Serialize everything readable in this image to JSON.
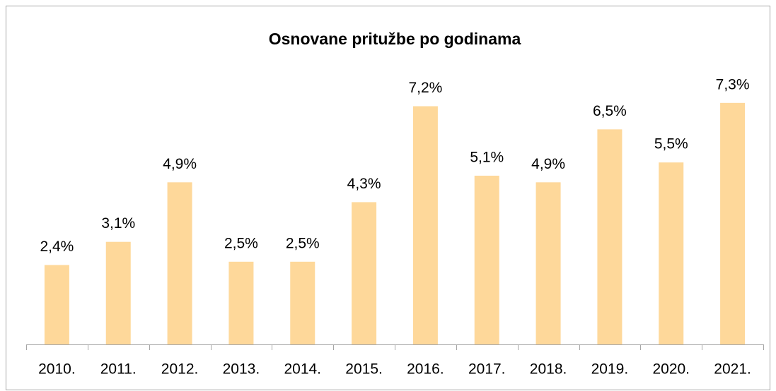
{
  "chart_data": {
    "type": "bar",
    "title": "Osnovane pritužbe po godinama",
    "categories": [
      "2010.",
      "2011.",
      "2012.",
      "2013.",
      "2014.",
      "2015.",
      "2016.",
      "2017.",
      "2018.",
      "2019.",
      "2020.",
      "2021."
    ],
    "values": [
      2.4,
      3.1,
      4.9,
      2.5,
      2.5,
      4.3,
      7.2,
      5.1,
      4.9,
      6.5,
      5.5,
      7.3
    ],
    "value_labels": [
      "2,4%",
      "3,1%",
      "4,9%",
      "2,5%",
      "2,5%",
      "4,3%",
      "7,2%",
      "5,1%",
      "4,9%",
      "6,5%",
      "5,5%",
      "7,3%"
    ],
    "color": "#fed89a",
    "ylim": [
      0,
      8
    ]
  }
}
